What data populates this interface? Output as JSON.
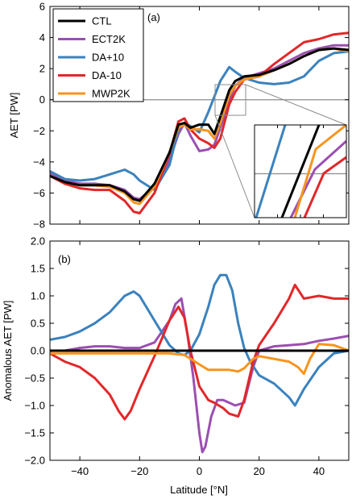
{
  "colors": {
    "CTL": "#000000",
    "ECT2K": "#9b4fb0",
    "DA+10": "#3b82bd",
    "DA-10": "#e2272a",
    "MWP2K": "#f7941d",
    "zeroline": "#8c8c8c"
  },
  "chart_data": [
    {
      "type": "line",
      "panel_label": "(a)",
      "xlabel": "",
      "ylabel": "AET [PW]",
      "xlim": [
        -50,
        50
      ],
      "ylim": [
        -8,
        6
      ],
      "xticks": [
        -40,
        -20,
        0,
        20,
        40
      ],
      "yticks": [
        -8,
        -6,
        -4,
        -2,
        0,
        2,
        4,
        6
      ],
      "legend": {
        "placement": "top-left",
        "entries": [
          "CTL",
          "ECT2K",
          "DA+10",
          "DA-10",
          "MWP2K"
        ]
      },
      "inset": true,
      "series": [
        {
          "name": "CTL",
          "x": [
            -50,
            -45,
            -40,
            -35,
            -30,
            -25,
            -22,
            -20,
            -15,
            -10,
            -7,
            -5,
            -3,
            0,
            3,
            5,
            7,
            10,
            12,
            15,
            20,
            25,
            30,
            35,
            40,
            45,
            50
          ],
          "y": [
            -4.9,
            -5.3,
            -5.5,
            -5.5,
            -5.5,
            -5.9,
            -6.4,
            -6.5,
            -5.4,
            -3.4,
            -1.6,
            -1.5,
            -1.8,
            -1.6,
            -1.6,
            -2.2,
            -1.1,
            0.6,
            1.2,
            1.5,
            1.6,
            1.9,
            2.3,
            2.8,
            3.2,
            3.3,
            3.2
          ]
        },
        {
          "name": "ECT2K",
          "x": [
            -50,
            -45,
            -40,
            -35,
            -30,
            -25,
            -22,
            -20,
            -15,
            -10,
            -7,
            -5,
            -3,
            0,
            3,
            5,
            7,
            10,
            12,
            15,
            20,
            25,
            30,
            35,
            40,
            45,
            50
          ],
          "y": [
            -4.7,
            -5.2,
            -5.4,
            -5.4,
            -5.5,
            -5.8,
            -6.3,
            -6.4,
            -5.6,
            -3.9,
            -2.2,
            -1.5,
            -2.3,
            -3.3,
            -3.2,
            -2.9,
            -1.8,
            0.0,
            0.9,
            1.4,
            1.7,
            2.0,
            2.5,
            3.0,
            3.3,
            3.5,
            3.5
          ]
        },
        {
          "name": "DA+10",
          "x": [
            -50,
            -45,
            -40,
            -35,
            -30,
            -25,
            -22,
            -20,
            -15,
            -10,
            -7,
            -5,
            -3,
            0,
            3,
            5,
            7,
            10,
            12,
            15,
            20,
            25,
            30,
            35,
            40,
            45,
            50
          ],
          "y": [
            -4.6,
            -5.1,
            -5.2,
            -5.1,
            -4.8,
            -4.5,
            -4.8,
            -5.2,
            -5.8,
            -4.2,
            -1.9,
            -1.5,
            -1.7,
            -2.1,
            -0.8,
            0.2,
            1.2,
            2.1,
            1.8,
            1.4,
            1.1,
            1.0,
            1.1,
            1.5,
            2.5,
            3.0,
            3.1
          ]
        },
        {
          "name": "DA-10",
          "x": [
            -50,
            -45,
            -40,
            -35,
            -30,
            -25,
            -22,
            -20,
            -15,
            -10,
            -7,
            -5,
            -3,
            0,
            3,
            5,
            7,
            10,
            12,
            15,
            20,
            25,
            30,
            35,
            40,
            45,
            50
          ],
          "y": [
            -4.9,
            -5.4,
            -5.7,
            -5.8,
            -5.8,
            -6.5,
            -7.2,
            -7.3,
            -6.0,
            -3.5,
            -1.4,
            -1.2,
            -1.9,
            -2.5,
            -2.8,
            -3.1,
            -2.5,
            -0.3,
            0.5,
            1.3,
            1.5,
            2.3,
            3.0,
            3.7,
            3.9,
            4.2,
            4.3
          ]
        },
        {
          "name": "MWP2K",
          "x": [
            -50,
            -45,
            -40,
            -35,
            -30,
            -25,
            -22,
            -20,
            -15,
            -10,
            -7,
            -5,
            -3,
            0,
            3,
            5,
            7,
            10,
            12,
            15,
            20,
            25,
            30,
            35,
            40,
            45,
            50
          ],
          "y": [
            -4.9,
            -5.3,
            -5.5,
            -5.5,
            -5.6,
            -6.0,
            -6.6,
            -6.7,
            -5.6,
            -3.4,
            -1.8,
            -1.6,
            -1.9,
            -1.9,
            -2.0,
            -2.5,
            -1.5,
            0.3,
            0.9,
            1.3,
            1.5,
            1.9,
            2.3,
            2.8,
            3.2,
            3.3,
            3.1
          ]
        }
      ]
    },
    {
      "type": "line",
      "panel_label": "(b)",
      "xlabel": "Latitude [°N]",
      "ylabel": "Anomalous AET [PW]",
      "xlim": [
        -50,
        50
      ],
      "ylim": [
        -2.0,
        2.0
      ],
      "xticks": [
        -40,
        -20,
        0,
        20,
        40
      ],
      "yticks": [
        -2.0,
        -1.5,
        -1.0,
        -0.5,
        0.0,
        0.5,
        1.0,
        1.5,
        2.0
      ],
      "series": [
        {
          "name": "CTL",
          "x": [
            -50,
            50
          ],
          "y": [
            0.0,
            0.0
          ]
        },
        {
          "name": "ECT2K",
          "x": [
            -50,
            -45,
            -40,
            -35,
            -30,
            -25,
            -20,
            -15,
            -10,
            -8,
            -6,
            -4,
            -2,
            0,
            1,
            2,
            4,
            6,
            8,
            10,
            12,
            15,
            18,
            20,
            25,
            30,
            35,
            40,
            45,
            50
          ],
          "y": [
            0.0,
            0.0,
            0.05,
            0.08,
            0.08,
            0.05,
            0.05,
            0.15,
            0.55,
            0.85,
            0.95,
            0.3,
            -0.5,
            -1.5,
            -1.85,
            -1.75,
            -1.2,
            -0.9,
            -0.9,
            -0.95,
            -1.0,
            -0.95,
            -0.3,
            0.0,
            0.08,
            0.1,
            0.12,
            0.18,
            0.22,
            0.27
          ]
        },
        {
          "name": "DA+10",
          "x": [
            -50,
            -45,
            -40,
            -35,
            -30,
            -25,
            -22,
            -20,
            -15,
            -10,
            -7,
            -5,
            -3,
            0,
            3,
            5,
            7,
            9,
            11,
            13,
            15,
            17,
            20,
            25,
            30,
            32,
            35,
            40,
            45,
            50
          ],
          "y": [
            0.2,
            0.25,
            0.35,
            0.5,
            0.7,
            1.0,
            1.08,
            1.0,
            0.55,
            0.1,
            -0.05,
            -0.08,
            0.0,
            0.3,
            0.8,
            1.2,
            1.38,
            1.38,
            1.1,
            0.5,
            0.05,
            -0.2,
            -0.45,
            -0.6,
            -0.85,
            -1.0,
            -0.7,
            -0.3,
            -0.05,
            0.0
          ]
        },
        {
          "name": "DA-10",
          "x": [
            -50,
            -45,
            -40,
            -35,
            -30,
            -27,
            -25,
            -23,
            -20,
            -15,
            -10,
            -7,
            -5,
            -3,
            0,
            3,
            5,
            8,
            10,
            13,
            15,
            18,
            20,
            25,
            30,
            32,
            35,
            40,
            45,
            50
          ],
          "y": [
            -0.05,
            -0.2,
            -0.3,
            -0.5,
            -0.8,
            -1.1,
            -1.25,
            -1.1,
            -0.7,
            -0.1,
            0.55,
            0.8,
            0.6,
            0.0,
            -0.65,
            -0.9,
            -0.95,
            -1.05,
            -1.15,
            -1.2,
            -0.9,
            -0.2,
            0.1,
            0.5,
            0.95,
            1.2,
            0.95,
            1.0,
            0.95,
            0.95
          ]
        },
        {
          "name": "MWP2K",
          "x": [
            -50,
            -45,
            -40,
            -35,
            -30,
            -25,
            -20,
            -15,
            -10,
            -5,
            0,
            3,
            5,
            8,
            10,
            13,
            15,
            18,
            20,
            25,
            30,
            33,
            35,
            37,
            40,
            45,
            50
          ],
          "y": [
            -0.05,
            -0.05,
            -0.05,
            -0.05,
            -0.05,
            -0.05,
            -0.05,
            -0.05,
            -0.05,
            -0.08,
            -0.25,
            -0.35,
            -0.35,
            -0.35,
            -0.35,
            -0.38,
            -0.32,
            -0.15,
            -0.1,
            -0.15,
            -0.2,
            -0.3,
            -0.42,
            -0.15,
            0.12,
            0.1,
            0.0
          ]
        }
      ]
    }
  ]
}
